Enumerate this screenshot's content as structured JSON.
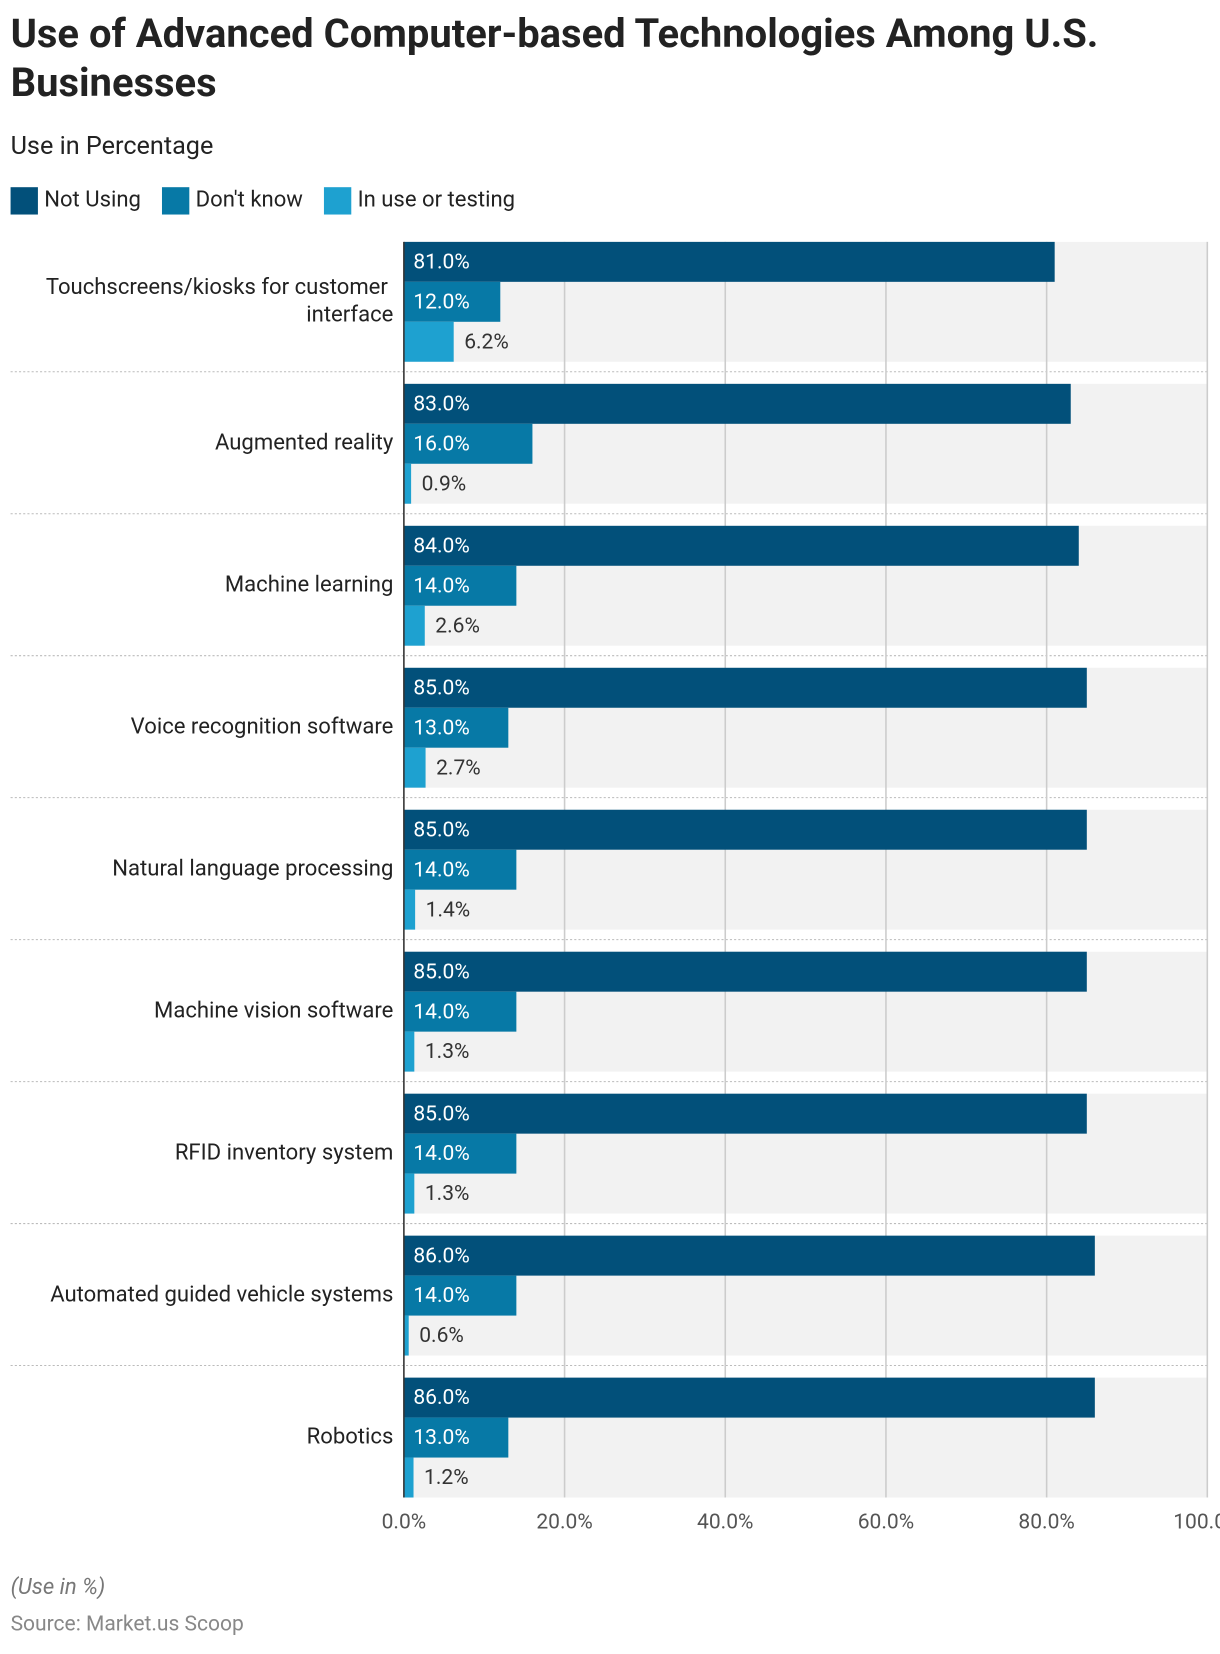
{
  "chart_data": {
    "type": "grouped-hbar",
    "title": "Use of Advanced Computer-based Technologies Among U.S. Businesses",
    "subtitle": "Use in Percentage",
    "note": "(Use in %)",
    "source": "Source: Market.us Scoop",
    "categories": [
      "Touchscreens/kiosks for customer interface",
      "Augmented reality",
      "Machine learning",
      "Voice recognition software",
      "Natural language processing",
      "Machine vision software",
      "RFID inventory system",
      "Automated guided vehicle systems",
      "Robotics"
    ],
    "series": [
      {
        "name": "Not Using",
        "color": "#02507a",
        "values": [
          81,
          83,
          84,
          85,
          85,
          85,
          85,
          86,
          86
        ],
        "value_labels": [
          "81.0%",
          "83.0%",
          "84.0%",
          "85.0%",
          "85.0%",
          "85.0%",
          "85.0%",
          "86.0%",
          "86.0%"
        ]
      },
      {
        "name": "Don't know",
        "color": "#0779a6",
        "values": [
          12,
          16,
          14,
          13,
          14,
          14,
          14,
          14,
          13
        ],
        "value_labels": [
          "12.0%",
          "16.0%",
          "14.0%",
          "13.0%",
          "14.0%",
          "14.0%",
          "14.0%",
          "14.0%",
          "13.0%"
        ]
      },
      {
        "name": "In use or testing",
        "color": "#1ea1d0",
        "values": [
          6.2,
          0.9,
          2.6,
          2.7,
          1.4,
          1.3,
          1.3,
          0.6,
          1.2
        ],
        "value_labels": [
          "6.2%",
          "0.9%",
          "2.6%",
          "2.7%",
          "1.4%",
          "1.3%",
          "1.3%",
          "0.6%",
          "1.2%"
        ]
      }
    ],
    "xlim": [
      0,
      100
    ],
    "xticks": [
      {
        "value": 0,
        "label": "0.0%"
      },
      {
        "value": 20,
        "label": "20.0%"
      },
      {
        "value": 40,
        "label": "40.0%"
      },
      {
        "value": 60,
        "label": "60.0%"
      },
      {
        "value": 80,
        "label": "80.0%"
      },
      {
        "value": 100,
        "label": "100.0%"
      }
    ],
    "grid": true,
    "legend": "top-left"
  }
}
